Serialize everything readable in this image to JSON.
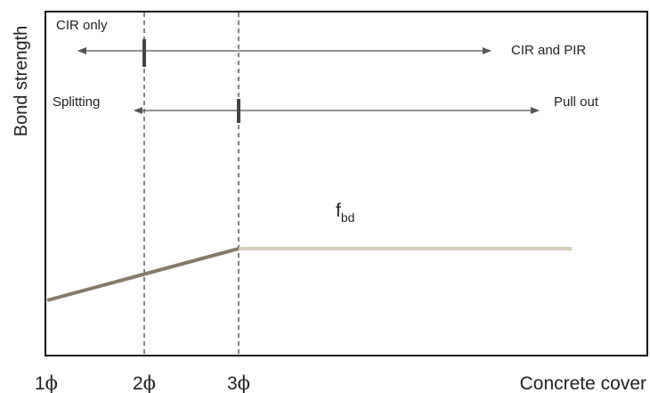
{
  "diagram": {
    "y_axis_label": "Bond strength",
    "x_axis_label": "Concrete cover",
    "x_ticks": [
      {
        "base": "1",
        "sym": "ϕ"
      },
      {
        "base": "2",
        "sym": "ϕ"
      },
      {
        "base": "3",
        "sym": "ϕ"
      }
    ],
    "range_labels": {
      "cir_only": "CIR only",
      "cir_and_pir": "CIR and PIR",
      "splitting": "Splitting",
      "pull_out": "Pull out"
    },
    "fbd_label": {
      "main": "f",
      "sub": "bd"
    },
    "colors": {
      "rising_line": "#857a6a",
      "plateau_line": "#d5cdbd",
      "axis": "#111111",
      "arrow": "#555555",
      "marker": "#444444",
      "dashed": "#444444"
    }
  }
}
